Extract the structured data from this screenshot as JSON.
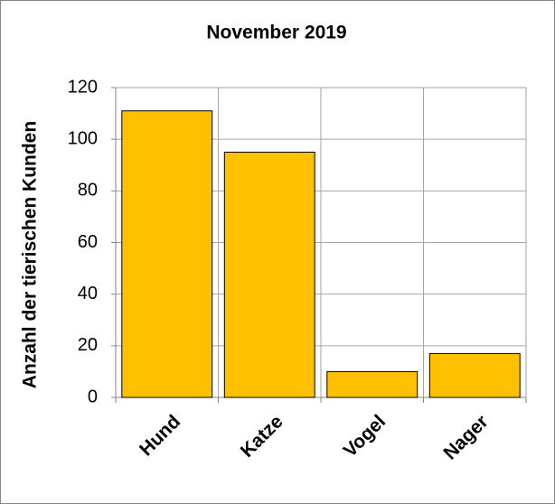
{
  "chart_data": {
    "type": "bar",
    "title": "November 2019",
    "y_label": "Anzahl der tierischen Kunden",
    "categories": [
      "Hund",
      "Katze",
      "Vogel",
      "Nager"
    ],
    "values": [
      111,
      95,
      10,
      17
    ],
    "color": "#ffc000",
    "ylim": [
      0,
      120
    ],
    "yticks": [
      0,
      20,
      40,
      60,
      80,
      100,
      120
    ],
    "grid": true
  }
}
